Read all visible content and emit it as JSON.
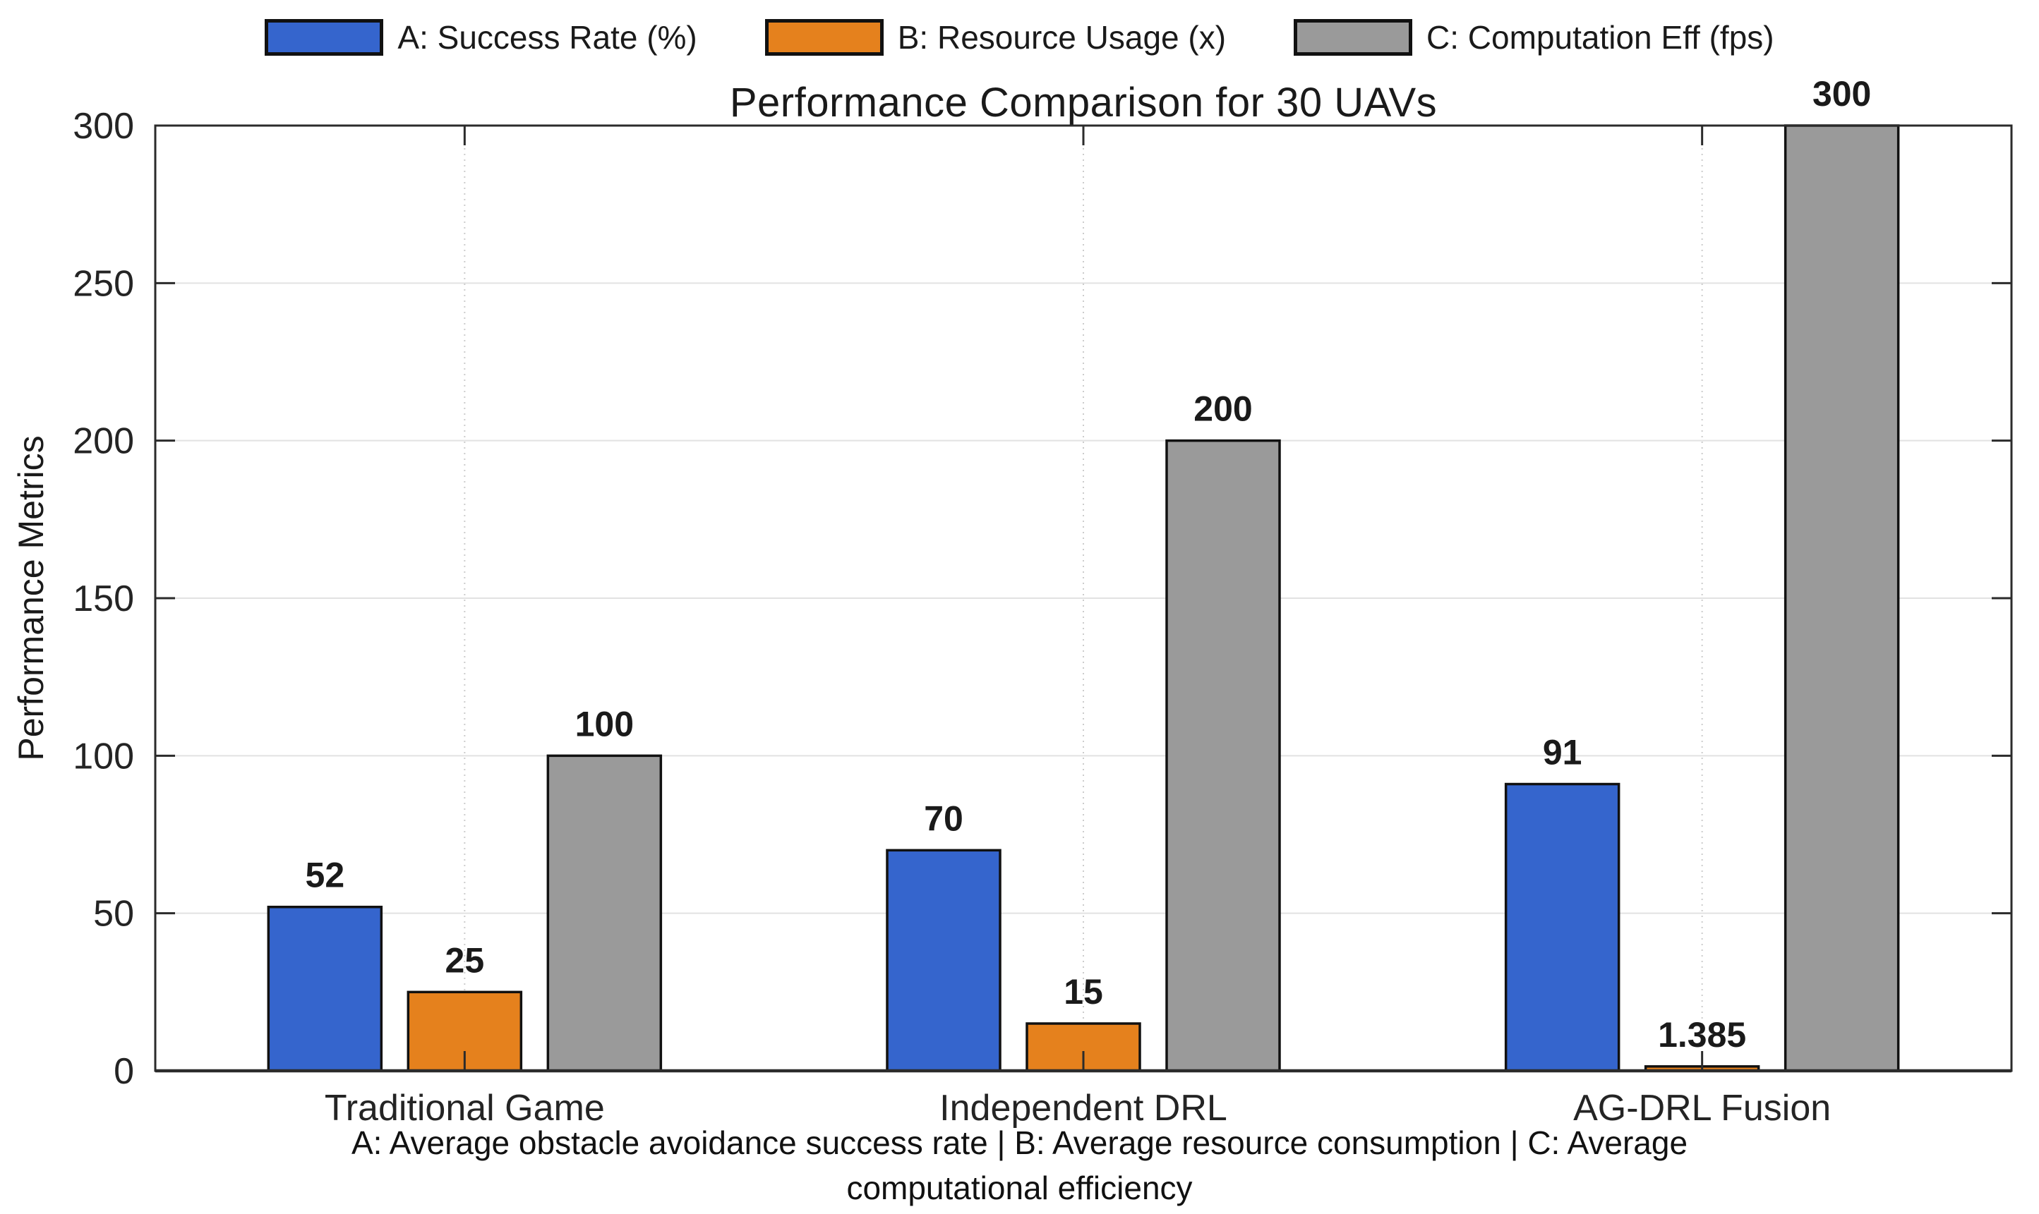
{
  "chart_data": {
    "type": "bar",
    "title": "Performance Comparison for 30 UAVs",
    "ylabel": "Performance Metrics",
    "categories": [
      "Traditional Game",
      "Independent DRL",
      "AG-DRL Fusion"
    ],
    "series": [
      {
        "name": "A: Success Rate (%)",
        "color": "#3565cd",
        "values": [
          52,
          70,
          91
        ]
      },
      {
        "name": "B: Resource Usage (x)",
        "color": "#e5811d",
        "values": [
          25,
          15,
          1.385
        ]
      },
      {
        "name": "C: Computation Eff (fps)",
        "color": "#9a9a9a",
        "values": [
          100,
          200,
          300
        ]
      }
    ],
    "value_labels": [
      [
        "52",
        "70",
        "91"
      ],
      [
        "25",
        "15",
        "1.385"
      ],
      [
        "100",
        "200",
        "300"
      ]
    ],
    "ylim": [
      0,
      300
    ],
    "yticks": [
      "0",
      "50",
      "100",
      "150",
      "200",
      "250",
      "300"
    ],
    "grid": "on",
    "legend_position": "top",
    "footnote": "A: Average obstacle avoidance success rate | B: Average resource consumption | C: Average computational efficiency"
  },
  "colors": {
    "bar_edge": "#111111",
    "axis": "#2b2b2b",
    "grid_h": "#e2e2e2",
    "grid_v": "#cccccc",
    "text": "#1a1a1a",
    "background": "#ffffff"
  }
}
